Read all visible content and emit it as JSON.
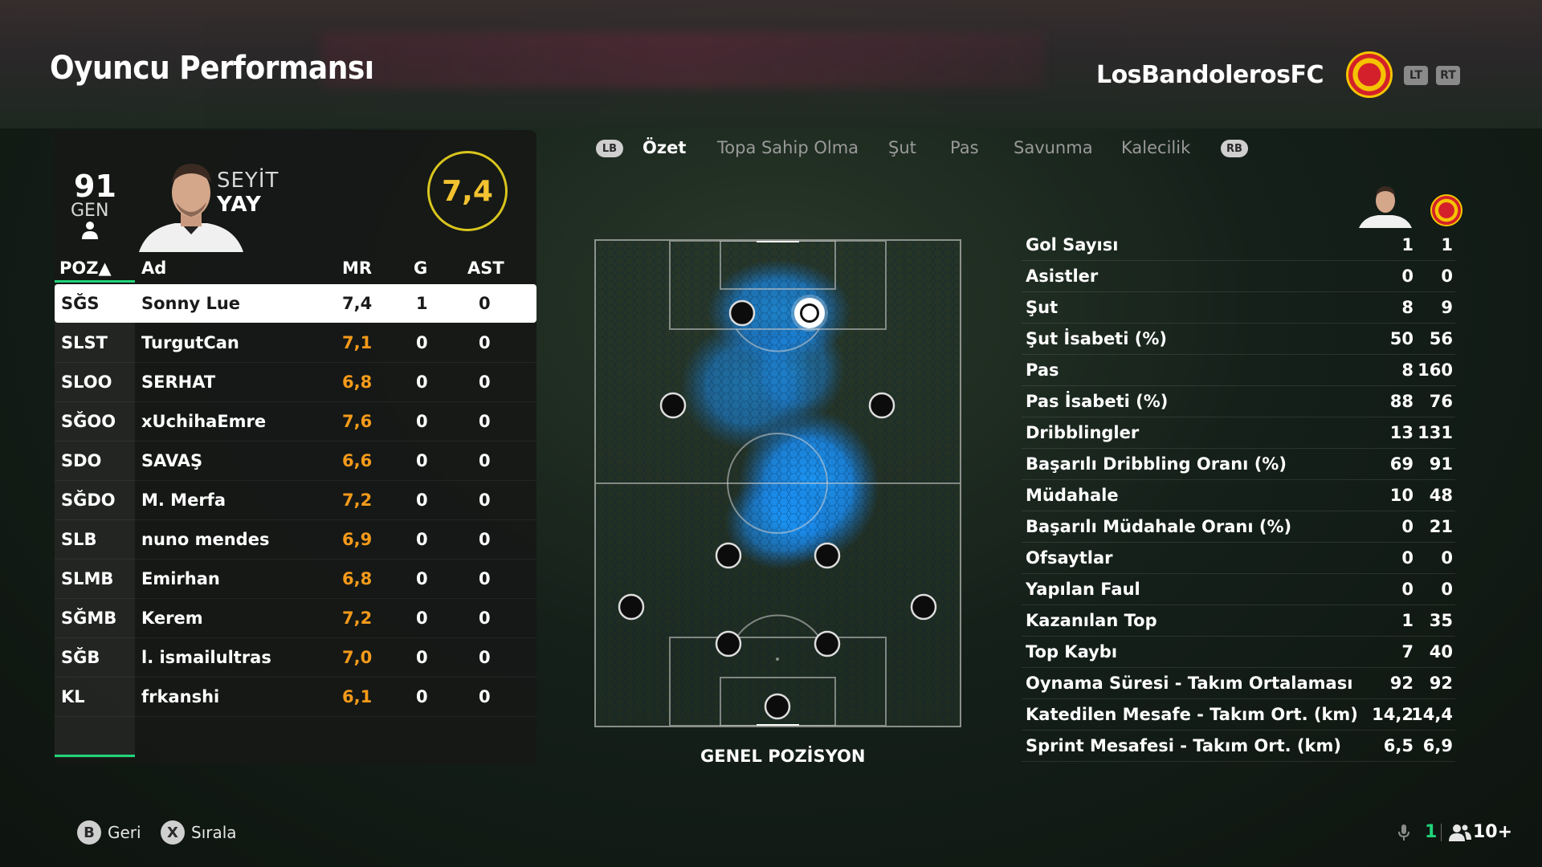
{
  "header": {
    "title": "Oyuncu Performansı",
    "club_name": "LosBandolerosFC",
    "lt_label": "LT",
    "rt_label": "RT"
  },
  "player_card": {
    "overall": "91",
    "overall_label": "GEN",
    "first_name": "SEYİT",
    "last_name": "YAY",
    "match_rating": "7,4"
  },
  "table": {
    "headers": {
      "pos": "POZ▲",
      "name": "Ad",
      "mr": "MR",
      "g": "G",
      "ast": "AST"
    },
    "rows": [
      {
        "pos": "SĞS",
        "name": "Sonny Lue",
        "mr": "7,4",
        "g": "1",
        "ast": "0"
      },
      {
        "pos": "SLST",
        "name": "TurgutCan",
        "mr": "7,1",
        "g": "0",
        "ast": "0"
      },
      {
        "pos": "SLOO",
        "name": "SERHAT",
        "mr": "6,8",
        "g": "0",
        "ast": "0"
      },
      {
        "pos": "SĞOO",
        "name": "xUchihaEmre",
        "mr": "7,6",
        "g": "0",
        "ast": "0"
      },
      {
        "pos": "SDO",
        "name": "SAVAŞ",
        "mr": "6,6",
        "g": "0",
        "ast": "0"
      },
      {
        "pos": "SĞDO",
        "name": "M. Merfa",
        "mr": "7,2",
        "g": "0",
        "ast": "0"
      },
      {
        "pos": "SLB",
        "name": "nuno mendes",
        "mr": "6,9",
        "g": "0",
        "ast": "0"
      },
      {
        "pos": "SLMB",
        "name": "Emirhan",
        "mr": "6,8",
        "g": "0",
        "ast": "0"
      },
      {
        "pos": "SĞMB",
        "name": "Kerem",
        "mr": "7,2",
        "g": "0",
        "ast": "0"
      },
      {
        "pos": "SĞB",
        "name": "l. ismailultras",
        "mr": "7,0",
        "g": "0",
        "ast": "0"
      },
      {
        "pos": "KL",
        "name": "frkanshi",
        "mr": "6,1",
        "g": "0",
        "ast": "0"
      }
    ]
  },
  "tabs": {
    "lb": "LB",
    "rb": "RB",
    "items": [
      "Özet",
      "Topa Sahip Olma",
      "Şut",
      "Pas",
      "Savunma",
      "Kalecilik"
    ],
    "active": "Özet"
  },
  "pitch": {
    "label": "GENEL POZİSYON"
  },
  "stats": [
    {
      "label": "Gol Sayısı",
      "player": "1",
      "team": "1"
    },
    {
      "label": "Asistler",
      "player": "0",
      "team": "0"
    },
    {
      "label": "Şut",
      "player": "8",
      "team": "9"
    },
    {
      "label": "Şut İsabeti (%)",
      "player": "50",
      "team": "56"
    },
    {
      "label": "Pas",
      "player": "8",
      "team": "160"
    },
    {
      "label": "Pas İsabeti (%)",
      "player": "88",
      "team": "76"
    },
    {
      "label": "Dribblingler",
      "player": "13",
      "team": "131"
    },
    {
      "label": "Başarılı Dribbling Oranı (%)",
      "player": "69",
      "team": "91"
    },
    {
      "label": "Müdahale",
      "player": "10",
      "team": "48"
    },
    {
      "label": "Başarılı Müdahale Oranı (%)",
      "player": "0",
      "team": "21"
    },
    {
      "label": "Ofsaytlar",
      "player": "0",
      "team": "0"
    },
    {
      "label": "Yapılan Faul",
      "player": "0",
      "team": "0"
    },
    {
      "label": "Kazanılan Top",
      "player": "1",
      "team": "35"
    },
    {
      "label": "Top Kaybı",
      "player": "7",
      "team": "40"
    },
    {
      "label": "Oynama Süresi - Takım Ortalaması",
      "player": "92",
      "team": "92"
    },
    {
      "label": "Katedilen Mesafe - Takım Ort. (km)",
      "player": "14,2",
      "team": "14,4"
    },
    {
      "label": "Sprint Mesafesi - Takım Ort. (km)",
      "player": "6,5",
      "team": "6,9"
    }
  ],
  "footer": {
    "back_button": "B",
    "back_label": "Geri",
    "sort_button": "X",
    "sort_label": "Sırala",
    "mic_count": "1",
    "party_count": "10+"
  },
  "colors": {
    "accent_green": "#21d37a",
    "rating_gold": "#f2c230",
    "mr_orange": "#f59a1a",
    "heatmap_blue": "#1a9bff"
  }
}
